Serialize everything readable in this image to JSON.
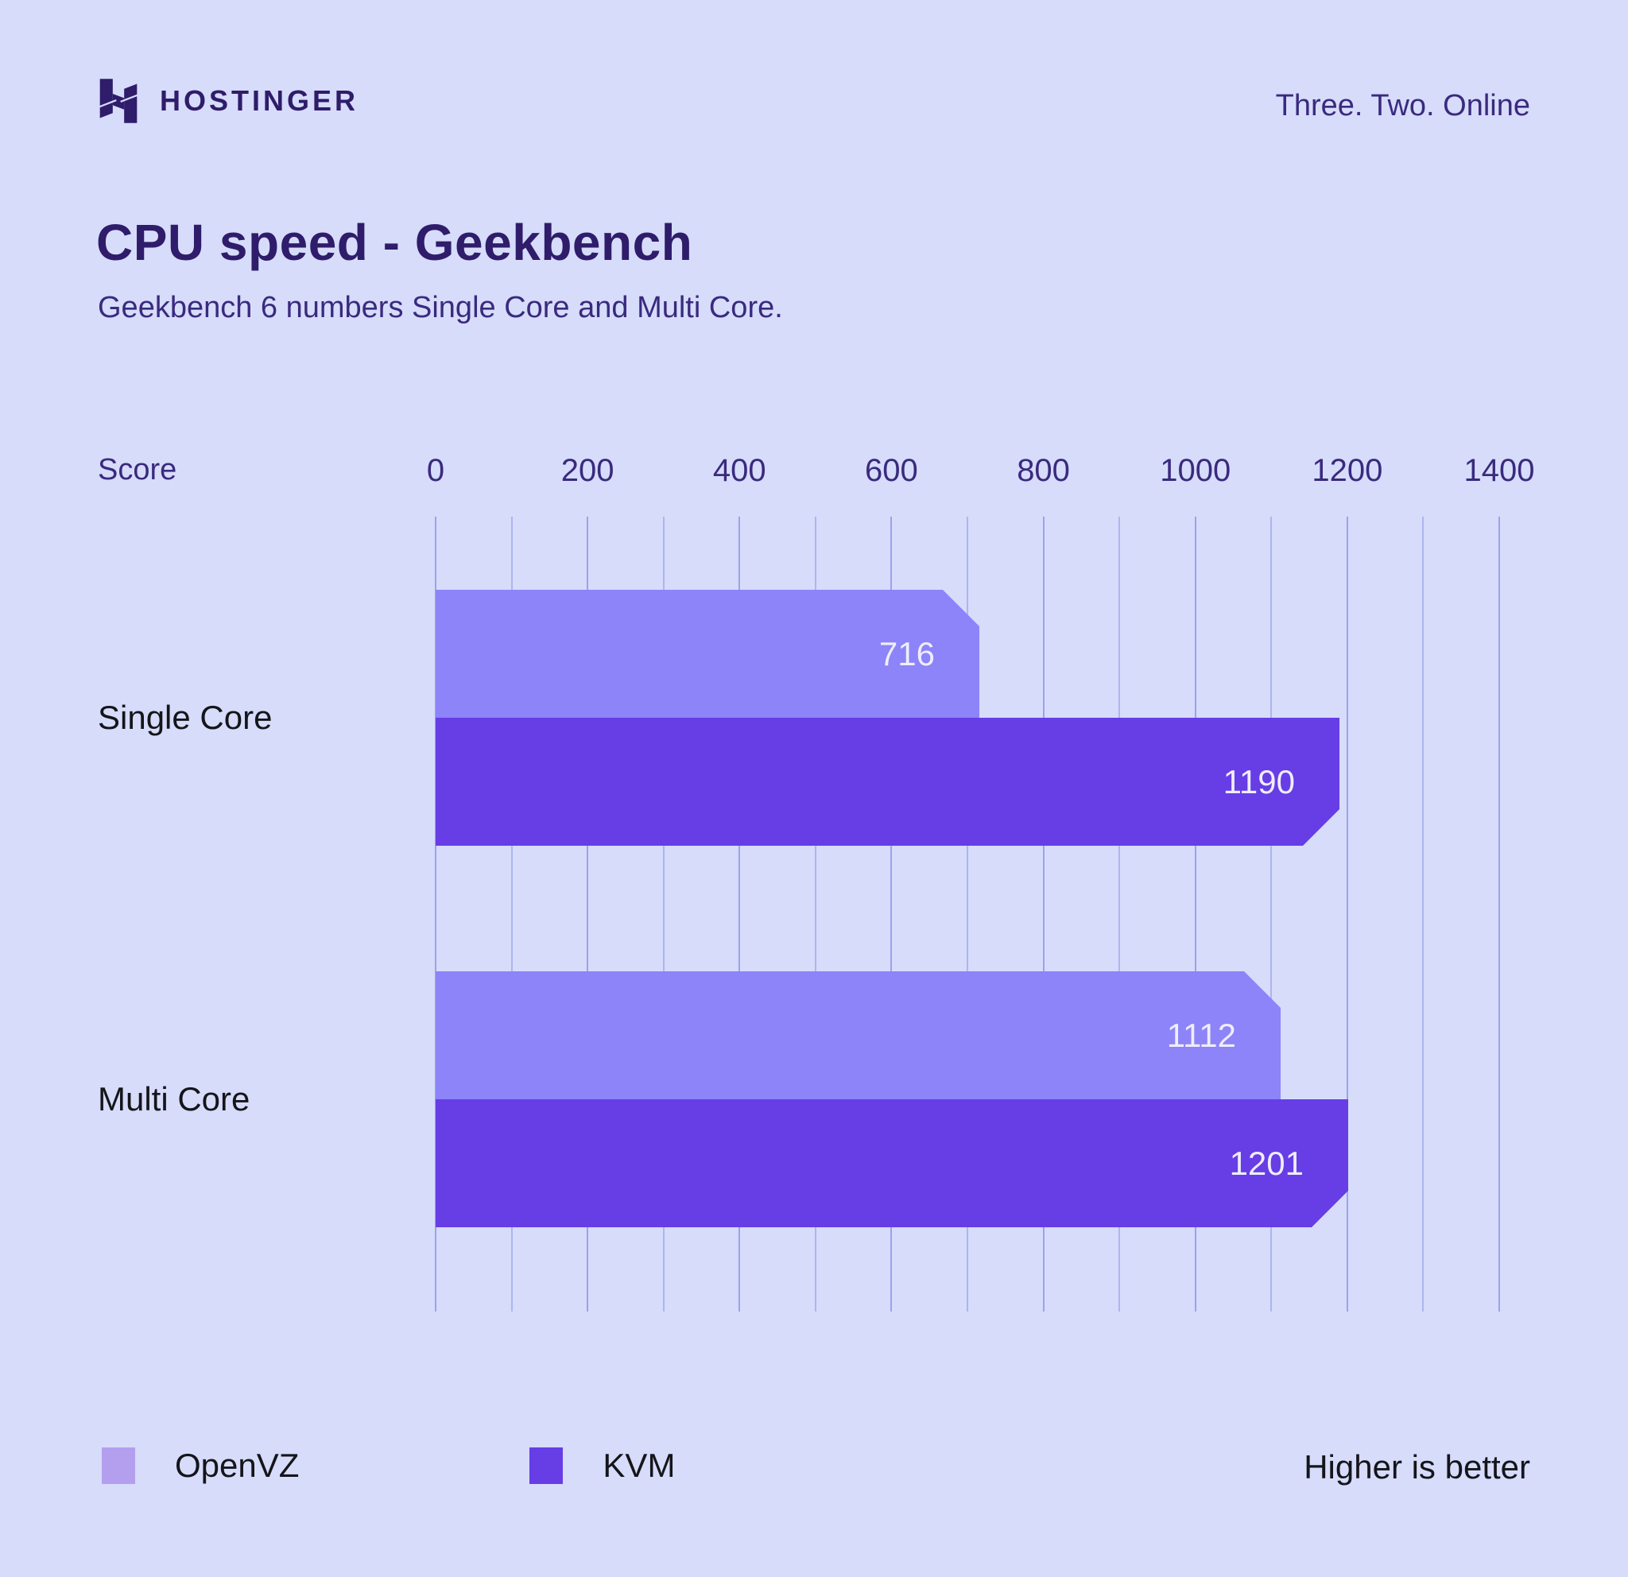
{
  "header": {
    "brand": "HOSTINGER",
    "tagline": "Three. Two. Online"
  },
  "title": "CPU speed - Geekbench",
  "subtitle": "Geekbench 6 numbers Single Core and Multi Core.",
  "axis_label": "Score",
  "note": "Higher is better",
  "colors": {
    "background": "#D6DCFA",
    "title": "#2F1C6A",
    "text_purple": "#3A2A7E",
    "black": "#15151A",
    "grid": "#ADB5F2",
    "grid_major": "#9AA3EC",
    "openvz_bar": "#8C84F8",
    "kvm_bar": "#673DE6",
    "openvz_legend": "#B49FEE",
    "kvm_legend": "#673DE6",
    "value_label": "#EFEDFB",
    "logo": "#2F1C6A"
  },
  "chart_data": {
    "type": "bar",
    "orientation": "horizontal",
    "title": "CPU speed - Geekbench",
    "subtitle": "Geekbench 6 numbers Single Core and Multi Core.",
    "categories": [
      "Single Core",
      "Multi Core"
    ],
    "series": [
      {
        "name": "OpenVZ",
        "values": [
          716,
          1112
        ],
        "color": "#8C84F8",
        "legend_color": "#B49FEE"
      },
      {
        "name": "KVM",
        "values": [
          1190,
          1201
        ],
        "color": "#673DE6",
        "legend_color": "#673DE6"
      }
    ],
    "xlabel": "Score",
    "ylabel": "",
    "xlim": [
      0,
      1400
    ],
    "ticks": [
      0,
      200,
      400,
      600,
      800,
      1000,
      1200,
      1400
    ],
    "grid_step": 100,
    "grid": true,
    "legend_position": "bottom",
    "annotation": "Higher is better"
  }
}
